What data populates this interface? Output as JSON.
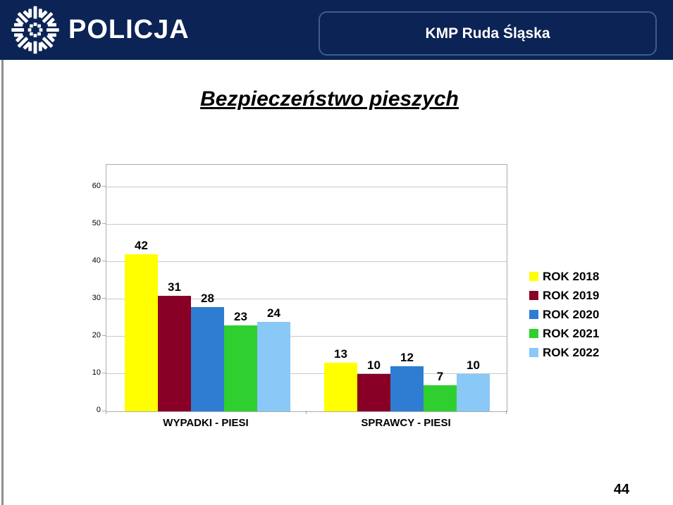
{
  "header": {
    "brand": "POLICJA",
    "badge": "KMP Ruda Śląska",
    "bg_color": "#0b2355",
    "badge_border_color": "#3c5c90"
  },
  "title": "Bezpieczeństwo pieszych",
  "page_number": "44",
  "chart_data": {
    "type": "bar",
    "title": "Bezpieczeństwo pieszych",
    "categories": [
      "WYPADKI - PIESI",
      "SPRAWCY - PIESI"
    ],
    "series": [
      {
        "name": "ROK 2018",
        "color": "#ffff00",
        "values": [
          42,
          13
        ]
      },
      {
        "name": "ROK 2019",
        "color": "#880026",
        "values": [
          31,
          10
        ]
      },
      {
        "name": "ROK 2020",
        "color": "#2e7dd2",
        "values": [
          28,
          12
        ]
      },
      {
        "name": "ROK 2021",
        "color": "#2fcf2f",
        "values": [
          23,
          7
        ]
      },
      {
        "name": "ROK 2022",
        "color": "#89c8f7",
        "values": [
          24,
          10
        ]
      }
    ],
    "y_ticks": [
      0,
      10,
      20,
      30,
      40,
      50,
      60
    ],
    "ylim": [
      0,
      66
    ],
    "grid": true,
    "data_labels": true,
    "legend_position": "right"
  },
  "icons": {
    "police_star": "police-star-emblem"
  }
}
